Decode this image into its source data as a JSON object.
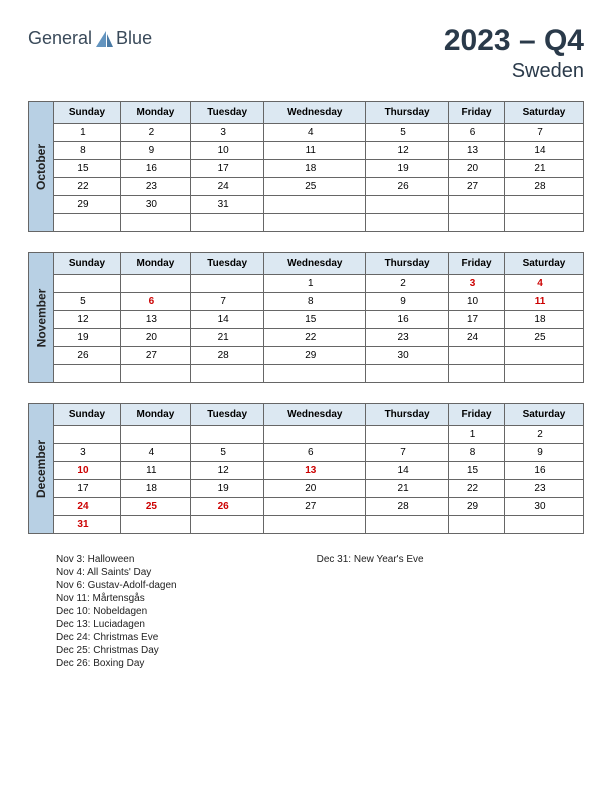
{
  "logo": {
    "word1": "General",
    "word2": "Blue"
  },
  "header": {
    "year_quarter": "2023 – Q4",
    "country": "Sweden"
  },
  "colors": {
    "month_bar": "#b8d0e4",
    "header_row": "#dce8f2",
    "border": "#666666",
    "holiday": "#cc0000",
    "logo_shape": "#6394bf",
    "text_primary": "#2a3a4a"
  },
  "day_headers": [
    "Sunday",
    "Monday",
    "Tuesday",
    "Wednesday",
    "Thursday",
    "Friday",
    "Saturday"
  ],
  "months": [
    {
      "name": "October",
      "weeks": [
        [
          {
            "d": "1"
          },
          {
            "d": "2"
          },
          {
            "d": "3"
          },
          {
            "d": "4"
          },
          {
            "d": "5"
          },
          {
            "d": "6"
          },
          {
            "d": "7"
          }
        ],
        [
          {
            "d": "8"
          },
          {
            "d": "9"
          },
          {
            "d": "10"
          },
          {
            "d": "11"
          },
          {
            "d": "12"
          },
          {
            "d": "13"
          },
          {
            "d": "14"
          }
        ],
        [
          {
            "d": "15"
          },
          {
            "d": "16"
          },
          {
            "d": "17"
          },
          {
            "d": "18"
          },
          {
            "d": "19"
          },
          {
            "d": "20"
          },
          {
            "d": "21"
          }
        ],
        [
          {
            "d": "22"
          },
          {
            "d": "23"
          },
          {
            "d": "24"
          },
          {
            "d": "25"
          },
          {
            "d": "26"
          },
          {
            "d": "27"
          },
          {
            "d": "28"
          }
        ],
        [
          {
            "d": "29"
          },
          {
            "d": "30"
          },
          {
            "d": "31"
          },
          {
            "d": ""
          },
          {
            "d": ""
          },
          {
            "d": ""
          },
          {
            "d": ""
          }
        ],
        [
          {
            "d": ""
          },
          {
            "d": ""
          },
          {
            "d": ""
          },
          {
            "d": ""
          },
          {
            "d": ""
          },
          {
            "d": ""
          },
          {
            "d": ""
          }
        ]
      ]
    },
    {
      "name": "November",
      "weeks": [
        [
          {
            "d": ""
          },
          {
            "d": ""
          },
          {
            "d": ""
          },
          {
            "d": "1"
          },
          {
            "d": "2"
          },
          {
            "d": "3",
            "h": true
          },
          {
            "d": "4",
            "h": true
          }
        ],
        [
          {
            "d": "5"
          },
          {
            "d": "6",
            "h": true
          },
          {
            "d": "7"
          },
          {
            "d": "8"
          },
          {
            "d": "9"
          },
          {
            "d": "10"
          },
          {
            "d": "11",
            "h": true
          }
        ],
        [
          {
            "d": "12"
          },
          {
            "d": "13"
          },
          {
            "d": "14"
          },
          {
            "d": "15"
          },
          {
            "d": "16"
          },
          {
            "d": "17"
          },
          {
            "d": "18"
          }
        ],
        [
          {
            "d": "19"
          },
          {
            "d": "20"
          },
          {
            "d": "21"
          },
          {
            "d": "22"
          },
          {
            "d": "23"
          },
          {
            "d": "24"
          },
          {
            "d": "25"
          }
        ],
        [
          {
            "d": "26"
          },
          {
            "d": "27"
          },
          {
            "d": "28"
          },
          {
            "d": "29"
          },
          {
            "d": "30"
          },
          {
            "d": ""
          },
          {
            "d": ""
          }
        ],
        [
          {
            "d": ""
          },
          {
            "d": ""
          },
          {
            "d": ""
          },
          {
            "d": ""
          },
          {
            "d": ""
          },
          {
            "d": ""
          },
          {
            "d": ""
          }
        ]
      ]
    },
    {
      "name": "December",
      "weeks": [
        [
          {
            "d": ""
          },
          {
            "d": ""
          },
          {
            "d": ""
          },
          {
            "d": ""
          },
          {
            "d": ""
          },
          {
            "d": "1"
          },
          {
            "d": "2"
          }
        ],
        [
          {
            "d": "3"
          },
          {
            "d": "4"
          },
          {
            "d": "5"
          },
          {
            "d": "6"
          },
          {
            "d": "7"
          },
          {
            "d": "8"
          },
          {
            "d": "9"
          }
        ],
        [
          {
            "d": "10",
            "h": true
          },
          {
            "d": "11"
          },
          {
            "d": "12"
          },
          {
            "d": "13",
            "h": true
          },
          {
            "d": "14"
          },
          {
            "d": "15"
          },
          {
            "d": "16"
          }
        ],
        [
          {
            "d": "17"
          },
          {
            "d": "18"
          },
          {
            "d": "19"
          },
          {
            "d": "20"
          },
          {
            "d": "21"
          },
          {
            "d": "22"
          },
          {
            "d": "23"
          }
        ],
        [
          {
            "d": "24",
            "h": true
          },
          {
            "d": "25",
            "h": true
          },
          {
            "d": "26",
            "h": true
          },
          {
            "d": "27"
          },
          {
            "d": "28"
          },
          {
            "d": "29"
          },
          {
            "d": "30"
          }
        ],
        [
          {
            "d": "31",
            "h": true
          },
          {
            "d": ""
          },
          {
            "d": ""
          },
          {
            "d": ""
          },
          {
            "d": ""
          },
          {
            "d": ""
          },
          {
            "d": ""
          }
        ]
      ]
    }
  ],
  "holidays_col1": [
    "Nov 3: Halloween",
    "Nov 4: All Saints' Day",
    "Nov 6: Gustav-Adolf-dagen",
    "Nov 11: Mårtensgås",
    "Dec 10: Nobeldagen",
    "Dec 13: Luciadagen",
    "Dec 24: Christmas Eve",
    "Dec 25: Christmas Day",
    "Dec 26: Boxing Day"
  ],
  "holidays_col2": [
    "Dec 31: New Year's Eve"
  ]
}
